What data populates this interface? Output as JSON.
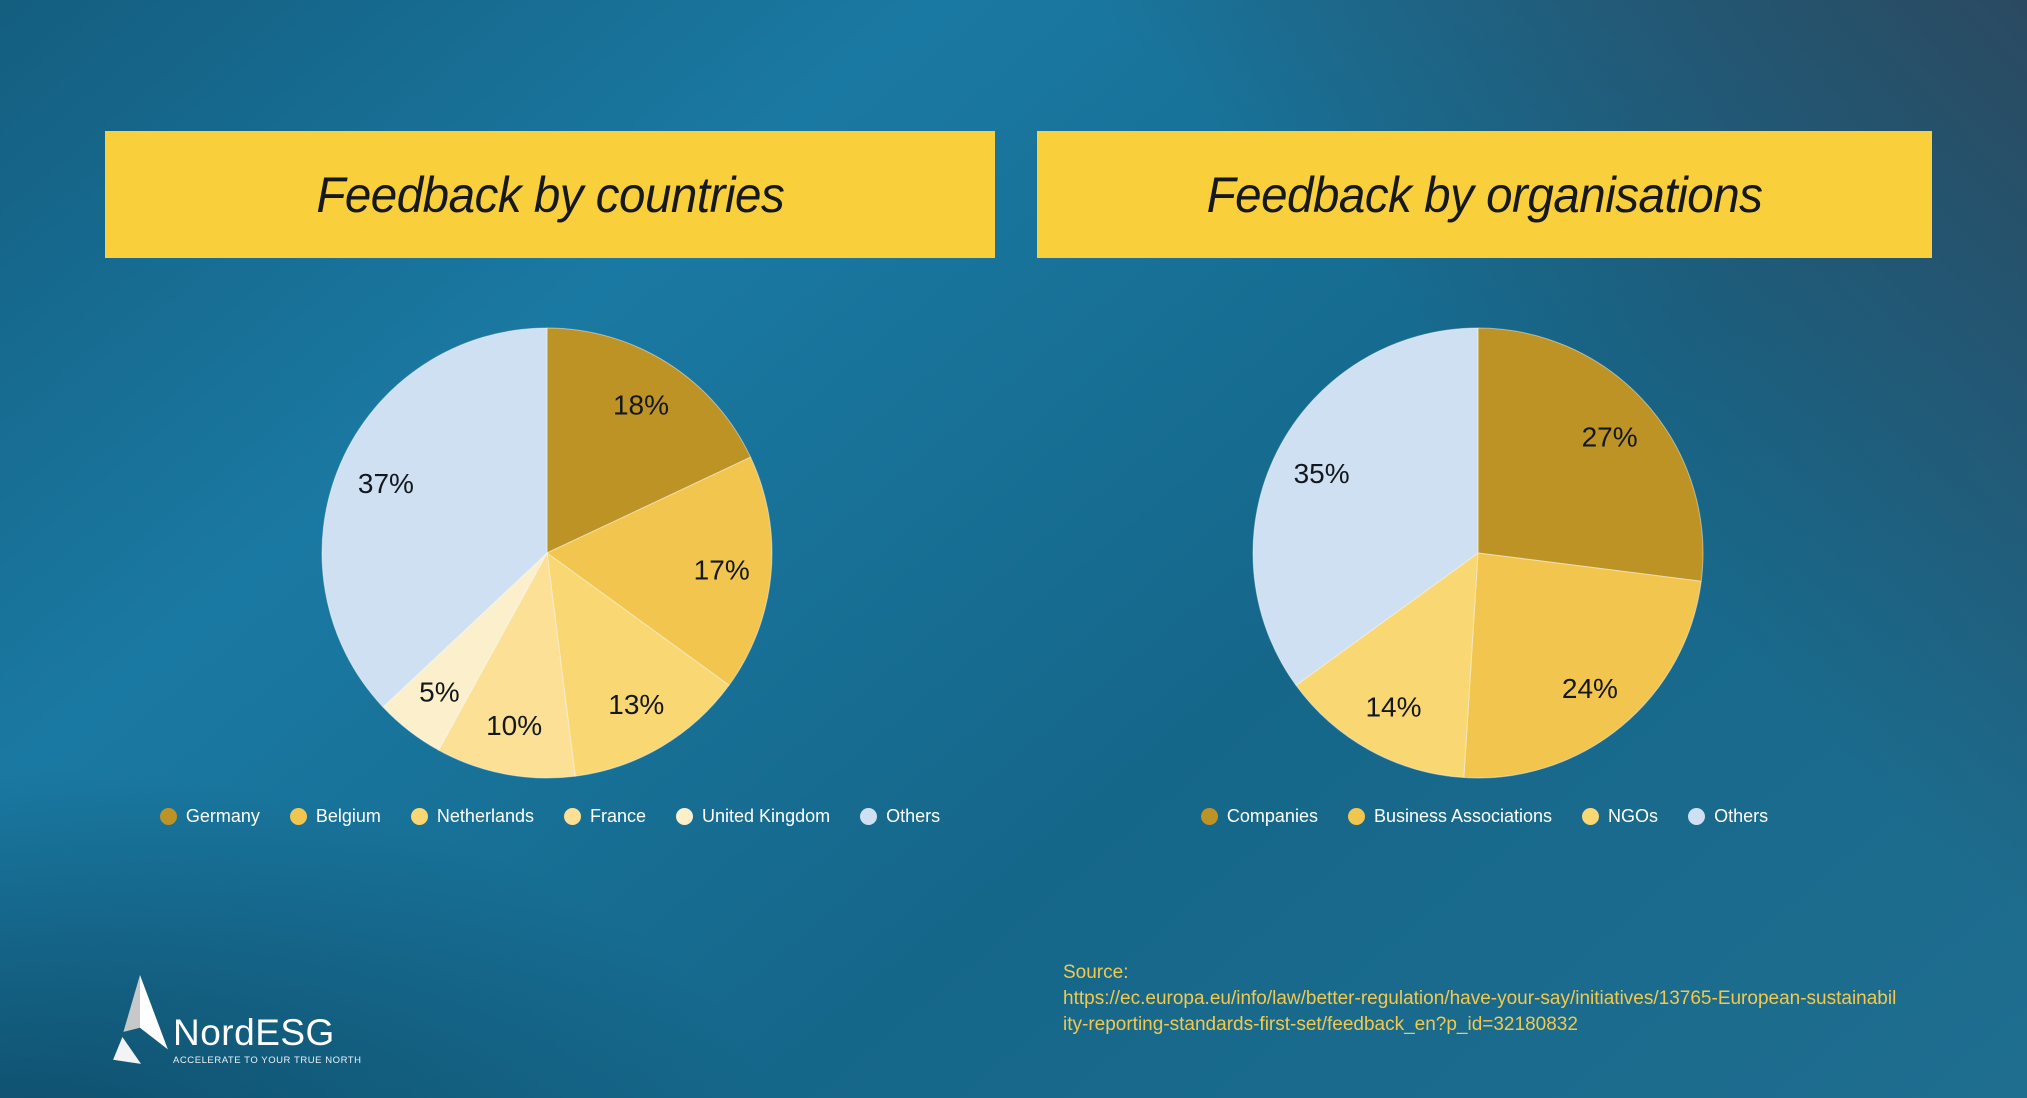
{
  "colors": {
    "banner_yellow": "#F9CF3B",
    "background_teal_light": "#1A79A2",
    "background_teal_dark": "#0E506F",
    "background_navy_corner": "#2B4A61",
    "legend_text": "#FFFFFF",
    "slice_label_text": "#14181D",
    "source_text": "#F2C94D"
  },
  "chart_data": [
    {
      "type": "pie",
      "title": "Feedback by countries",
      "start_angle": "12 o'clock",
      "direction": "clockwise",
      "legend_position": "bottom",
      "slices": [
        {
          "name": "Germany",
          "value": 18,
          "pct_label": "18%",
          "color": "#BE9326"
        },
        {
          "name": "Belgium",
          "value": 17,
          "pct_label": "17%",
          "color": "#F2C54E"
        },
        {
          "name": "Netherlands",
          "value": 13,
          "pct_label": "13%",
          "color": "#F9D874"
        },
        {
          "name": "France",
          "value": 10,
          "pct_label": "10%",
          "color": "#FBE095"
        },
        {
          "name": "United Kingdom",
          "value": 5,
          "pct_label": "5%",
          "color": "#FCF0CC"
        },
        {
          "name": "Others",
          "value": 37,
          "pct_label": "37%",
          "color": "#CFE0F2"
        }
      ]
    },
    {
      "type": "pie",
      "title": "Feedback by organisations",
      "start_angle": "12 o'clock",
      "direction": "clockwise",
      "legend_position": "bottom",
      "slices": [
        {
          "name": "Companies",
          "value": 27,
          "pct_label": "27%",
          "color": "#BE9326"
        },
        {
          "name": "Business Associations",
          "value": 24,
          "pct_label": "24%",
          "color": "#F2C54E"
        },
        {
          "name": "NGOs",
          "value": 14,
          "pct_label": "14%",
          "color": "#F9D874"
        },
        {
          "name": "Others",
          "value": 35,
          "pct_label": "35%",
          "color": "#CFE0F2"
        }
      ]
    }
  ],
  "footer": {
    "logo": {
      "name": "NordESG",
      "tagline": "ACCELERATE TO YOUR TRUE NORTH"
    },
    "source": {
      "lines": [
        "Source:",
        "https://ec.europa.eu/info/law/better-regulation/have-your-say/initiatives/13765-European-sustainabil",
        "ity-reporting-standards-first-set/feedback_en?p_id=32180832"
      ]
    }
  }
}
